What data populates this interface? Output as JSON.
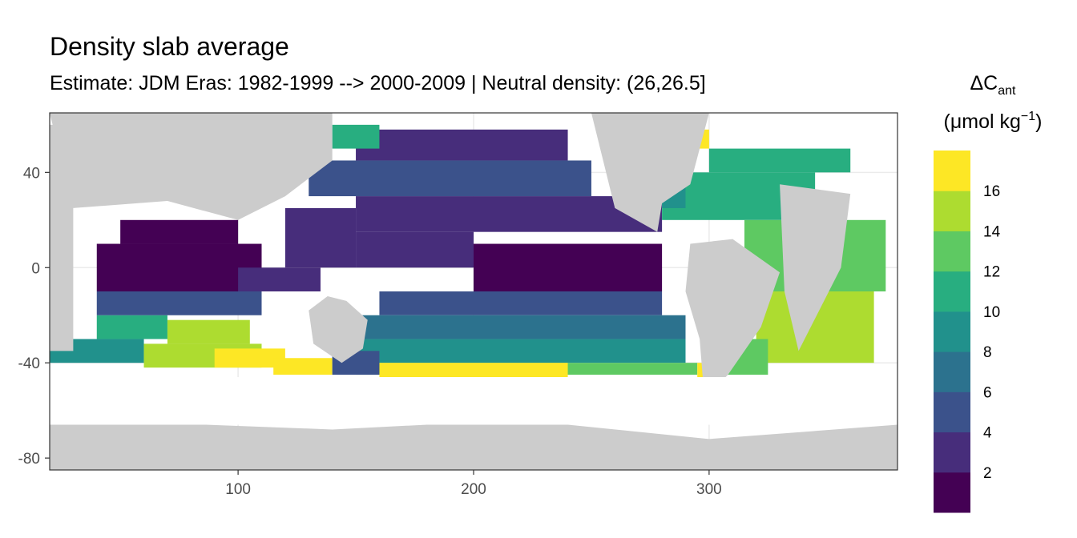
{
  "chart_data": {
    "type": "heatmap",
    "title": "Density slab average",
    "subtitle": "Estimate: JDM Eras: 1982-1999 --> 2000-2009 | Neutral density: (26,26.5]",
    "xlabel": "",
    "ylabel": "",
    "xlim": [
      20,
      380
    ],
    "ylim": [
      -85,
      65
    ],
    "x_ticks": [
      100,
      200,
      300
    ],
    "y_ticks": [
      40,
      0,
      -40,
      -80
    ],
    "grid": true,
    "legend": {
      "position": "right",
      "title": "ΔC",
      "title_subscript": "ant",
      "unit_prefix": "(μmol kg",
      "unit_superscript": "−1",
      "unit_suffix": ")",
      "breaks": [
        2,
        4,
        6,
        8,
        10,
        12,
        14,
        16
      ],
      "bins": [
        {
          "range": [
            0,
            2
          ],
          "color": "#440154"
        },
        {
          "range": [
            2,
            4
          ],
          "color": "#472d7b"
        },
        {
          "range": [
            4,
            6
          ],
          "color": "#3b528b"
        },
        {
          "range": [
            6,
            8
          ],
          "color": "#2c728e"
        },
        {
          "range": [
            8,
            10
          ],
          "color": "#21918c"
        },
        {
          "range": [
            10,
            12
          ],
          "color": "#28ae80"
        },
        {
          "range": [
            12,
            14
          ],
          "color": "#5ec962"
        },
        {
          "range": [
            14,
            16
          ],
          "color": "#addc30"
        },
        {
          "range": [
            16,
            18
          ],
          "color": "#fde725"
        }
      ]
    },
    "land_color": "#cccccc",
    "missing_color": "#ffffff",
    "cells": [
      {
        "x": [
          20,
          60
        ],
        "y": [
          -40,
          -30
        ],
        "value": 9
      },
      {
        "x": [
          40,
          70
        ],
        "y": [
          -30,
          -20
        ],
        "value": 11
      },
      {
        "x": [
          60,
          110
        ],
        "y": [
          -42,
          -32
        ],
        "value": 15
      },
      {
        "x": [
          70,
          105
        ],
        "y": [
          -32,
          -22
        ],
        "value": 14
      },
      {
        "x": [
          90,
          120
        ],
        "y": [
          -42,
          -34
        ],
        "value": 17
      },
      {
        "x": [
          115,
          140
        ],
        "y": [
          -45,
          -38
        ],
        "value": 17
      },
      {
        "x": [
          40,
          110
        ],
        "y": [
          -20,
          -10
        ],
        "value": 5
      },
      {
        "x": [
          40,
          110
        ],
        "y": [
          -10,
          10
        ],
        "value": 1
      },
      {
        "x": [
          50,
          100
        ],
        "y": [
          10,
          20
        ],
        "value": 1
      },
      {
        "x": [
          100,
          135
        ],
        "y": [
          -10,
          0
        ],
        "value": 3
      },
      {
        "x": [
          120,
          150
        ],
        "y": [
          0,
          25
        ],
        "value": 3
      },
      {
        "x": [
          150,
          200
        ],
        "y": [
          0,
          15
        ],
        "value": 2
      },
      {
        "x": [
          200,
          280
        ],
        "y": [
          -10,
          10
        ],
        "value": 1
      },
      {
        "x": [
          160,
          280
        ],
        "y": [
          -20,
          -10
        ],
        "value": 4
      },
      {
        "x": [
          150,
          290
        ],
        "y": [
          -30,
          -20
        ],
        "value": 7
      },
      {
        "x": [
          150,
          290
        ],
        "y": [
          -40,
          -30
        ],
        "value": 9
      },
      {
        "x": [
          150,
          295
        ],
        "y": [
          -45,
          -40
        ],
        "value": 13
      },
      {
        "x": [
          160,
          240
        ],
        "y": [
          -46,
          -40
        ],
        "value": 17
      },
      {
        "x": [
          140,
          160
        ],
        "y": [
          -45,
          -35
        ],
        "value": 4
      },
      {
        "x": [
          150,
          280
        ],
        "y": [
          15,
          30
        ],
        "value": 3
      },
      {
        "x": [
          130,
          250
        ],
        "y": [
          30,
          45
        ],
        "value": 5
      },
      {
        "x": [
          150,
          240
        ],
        "y": [
          45,
          58
        ],
        "value": 3
      },
      {
        "x": [
          140,
          160
        ],
        "y": [
          50,
          60
        ],
        "value": 11
      },
      {
        "x": [
          280,
          345
        ],
        "y": [
          20,
          40
        ],
        "value": 10
      },
      {
        "x": [
          300,
          360
        ],
        "y": [
          40,
          50
        ],
        "value": 11
      },
      {
        "x": [
          275,
          300
        ],
        "y": [
          50,
          58
        ],
        "value": 17
      },
      {
        "x": [
          315,
          345
        ],
        "y": [
          -10,
          20
        ],
        "value": 13
      },
      {
        "x": [
          345,
          375
        ],
        "y": [
          -10,
          20
        ],
        "value": 13
      },
      {
        "x": [
          320,
          370
        ],
        "y": [
          -40,
          -10
        ],
        "value": 15
      },
      {
        "x": [
          305,
          325
        ],
        "y": [
          -45,
          -30
        ],
        "value": 13
      },
      {
        "x": [
          295,
          305
        ],
        "y": [
          -50,
          -40
        ],
        "value": 17
      },
      {
        "x": [
          280,
          290
        ],
        "y": [
          25,
          35
        ],
        "value": 9
      }
    ],
    "land": [
      {
        "x": [
          20,
          30
        ],
        "y": [
          -35,
          60
        ],
        "shape": "africa-west"
      },
      {
        "x": [
          330,
          360
        ],
        "y": [
          0,
          35
        ],
        "shape": "africa"
      },
      {
        "x": [
          130,
          155
        ],
        "y": [
          -40,
          -12
        ],
        "shape": "australia"
      },
      {
        "x": [
          290,
          330
        ],
        "y": [
          -55,
          10
        ],
        "shape": "south-america"
      },
      {
        "x": [
          250,
          300
        ],
        "y": [
          15,
          65
        ],
        "shape": "north-america"
      },
      {
        "x": [
          20,
          140
        ],
        "y": [
          20,
          65
        ],
        "shape": "eurasia"
      },
      {
        "x": [
          20,
          380
        ],
        "y": [
          -85,
          -66
        ],
        "shape": "antarctica"
      }
    ]
  }
}
